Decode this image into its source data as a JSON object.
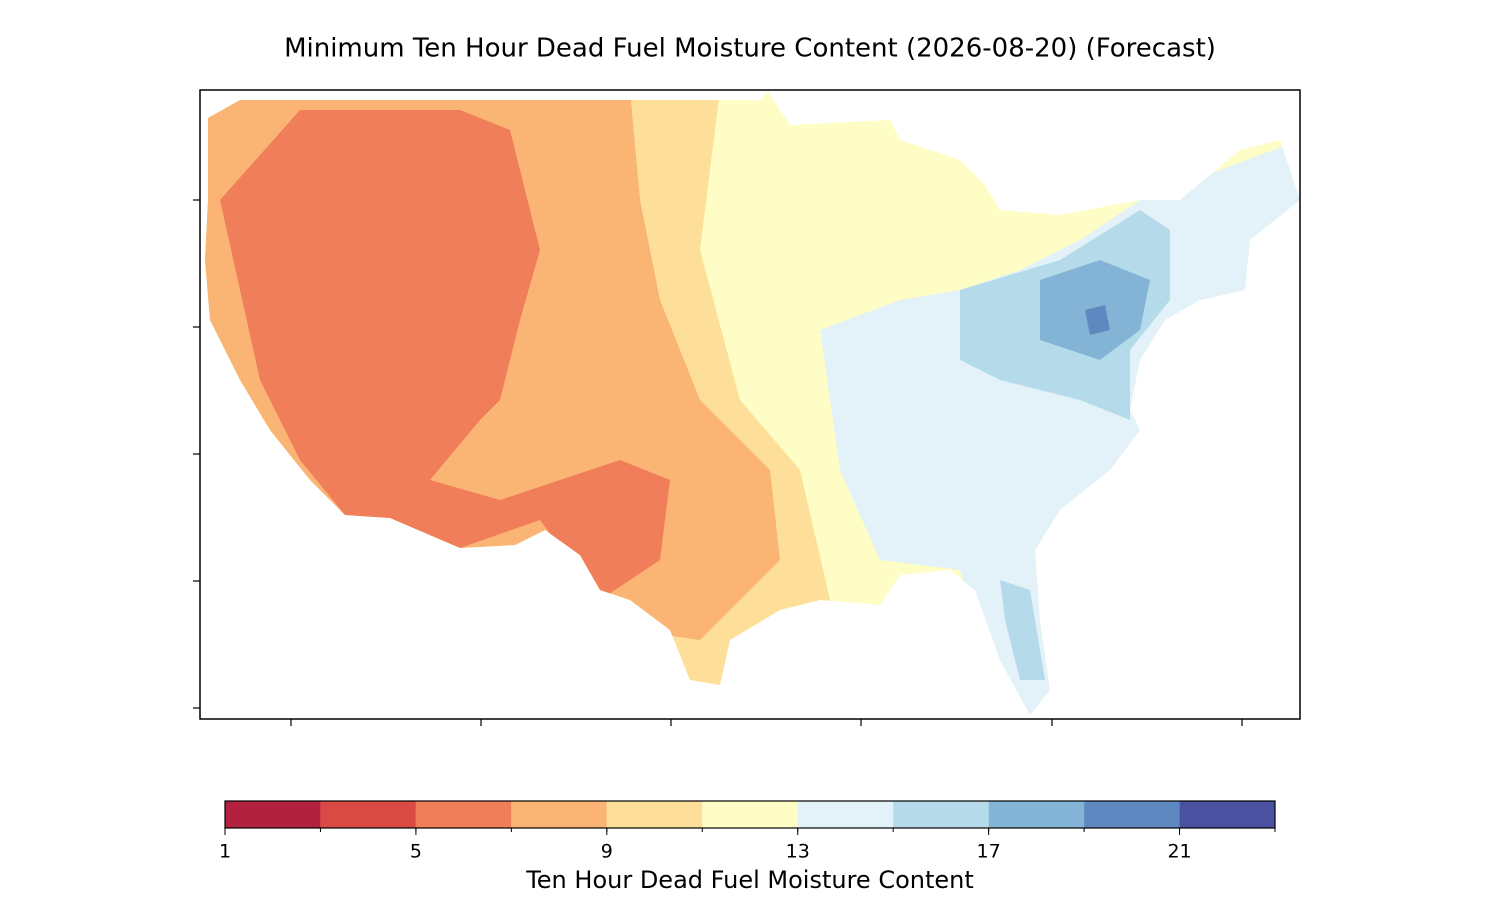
{
  "title": "Minimum Ten Hour Dead Fuel Moisture Content (2026-08-20) (Forecast)",
  "colorbar": {
    "label": "Ten Hour Dead Fuel Moisture Content",
    "range": [
      1,
      23
    ],
    "boundaries": [
      1,
      3,
      5,
      7,
      9,
      11,
      13,
      15,
      17,
      19,
      21,
      23
    ],
    "colors": [
      "#b2213f",
      "#d94a44",
      "#f07e5a",
      "#fab574",
      "#fddf9a",
      "#fefdc5",
      "#e3f2f8",
      "#b5dbea",
      "#84b4d5",
      "#5f88c0",
      "#4a51a1"
    ],
    "ticks": [
      1,
      5,
      9,
      13,
      17,
      21
    ]
  }
}
